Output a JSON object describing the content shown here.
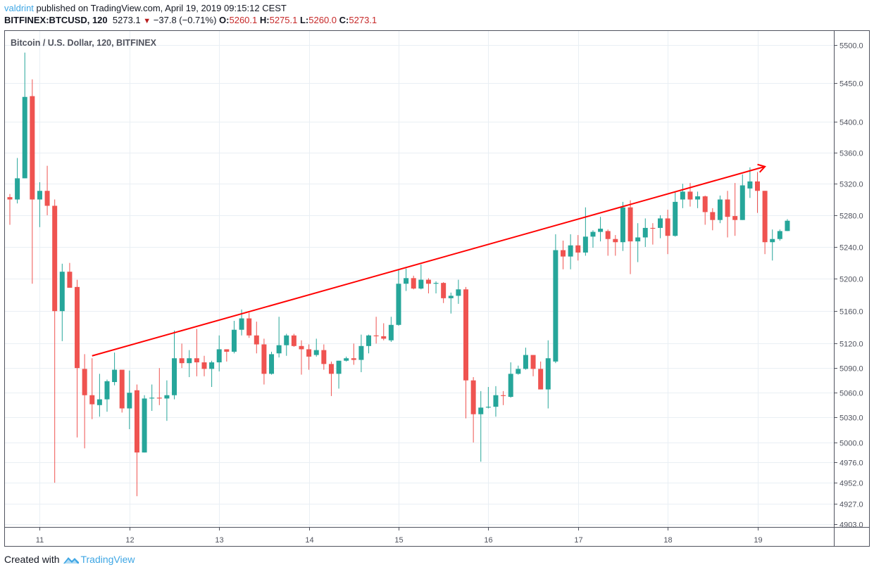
{
  "header": {
    "username": "valdrint",
    "published_text": "published on TradingView.com, April 19, 2019 09:15:12 CEST",
    "symbol_label": "BITFINEX:BTCUSD, 120",
    "last_price": "5273.1",
    "change_text": "−37.8 (−0.71%)",
    "change_direction_icon": "triangle-down-icon",
    "ohlc": [
      {
        "label": "O:",
        "value": "5260.1"
      },
      {
        "label": "H:",
        "value": "5275.1"
      },
      {
        "label": "L:",
        "value": "5260.0"
      },
      {
        "label": "C:",
        "value": "5273.1"
      }
    ]
  },
  "footer": {
    "created_with": "Created with",
    "brand": "TradingView",
    "logo_icon": "tradingview-cloud-logo-icon"
  },
  "colors": {
    "up": "#26a69a",
    "down": "#ef5350",
    "trendline": "#ff0000",
    "grid": "#e9eff4",
    "brand": "#3ea6e4"
  },
  "chart_data": {
    "type": "candlestick",
    "title": "Bitcoin / U.S. Dollar, 120, BITFINEX",
    "y_scale": "log",
    "ylim": [
      4903,
      5510
    ],
    "y_ticks": [
      "5500.0",
      "5450.0",
      "5400.0",
      "5360.0",
      "5320.0",
      "5280.0",
      "5240.0",
      "5200.0",
      "5160.0",
      "5120.0",
      "5090.0",
      "5060.0",
      "5030.0",
      "5000.0",
      "4976.0",
      "4952.0",
      "4927.0",
      "4903.0"
    ],
    "x_ticks": [
      "11",
      "12",
      "13",
      "14",
      "15",
      "16",
      "17",
      "18",
      "19"
    ],
    "grid": true,
    "columns": [
      "time",
      "open",
      "high",
      "low",
      "close"
    ],
    "candles": [
      [
        "04-10 16:00",
        5303,
        5307,
        5268,
        5300
      ],
      [
        "04-10 18:00",
        5300,
        5353,
        5295,
        5327
      ],
      [
        "04-10 20:00",
        5327,
        5490,
        5327,
        5432
      ],
      [
        "04-10 22:00",
        5433,
        5455,
        5194,
        5300
      ],
      [
        "04-11 00:00",
        5300,
        5322,
        5265,
        5311
      ],
      [
        "04-11 02:00",
        5311,
        5343,
        5280,
        5292
      ],
      [
        "04-11 04:00",
        5292,
        5300,
        4952,
        5160
      ],
      [
        "04-11 06:00",
        5160,
        5219,
        5123,
        5209
      ],
      [
        "04-11 08:00",
        5209,
        5220,
        5189,
        5189
      ],
      [
        "04-11 10:00",
        5190,
        5199,
        5006,
        5090
      ],
      [
        "04-11 12:00",
        5089,
        5107,
        4993,
        5057
      ],
      [
        "04-11 14:00",
        5057,
        5102,
        5028,
        5046
      ],
      [
        "04-11 16:00",
        5045,
        5083,
        5031,
        5052
      ],
      [
        "04-11 18:00",
        5052,
        5076,
        5037,
        5074
      ],
      [
        "04-11 20:00",
        5073,
        5109,
        5069,
        5088
      ],
      [
        "04-11 22:00",
        5088,
        5088,
        5036,
        5041
      ],
      [
        "04-12 00:00",
        5041,
        5087,
        5016,
        5060
      ],
      [
        "04-12 02:00",
        5063,
        5070,
        4936,
        4988
      ],
      [
        "04-12 04:00",
        4988,
        5057,
        4988,
        5053
      ],
      [
        "04-12 06:00",
        5053,
        5070,
        5038,
        5054
      ],
      [
        "04-12 08:00",
        5054,
        5090,
        5045,
        5053
      ],
      [
        "04-12 10:00",
        5053,
        5075,
        5026,
        5057
      ],
      [
        "04-12 12:00",
        5057,
        5136,
        5052,
        5102
      ],
      [
        "04-12 14:00",
        5102,
        5120,
        5090,
        5096
      ],
      [
        "04-12 16:00",
        5096,
        5112,
        5079,
        5102
      ],
      [
        "04-12 18:00",
        5102,
        5138,
        5080,
        5097
      ],
      [
        "04-12 20:00",
        5097,
        5105,
        5080,
        5089
      ],
      [
        "04-12 22:00",
        5089,
        5099,
        5067,
        5097
      ],
      [
        "04-13 00:00",
        5097,
        5130,
        5086,
        5113
      ],
      [
        "04-13 02:00",
        5113,
        5113,
        5098,
        5110
      ],
      [
        "04-13 04:00",
        5110,
        5148,
        5108,
        5137
      ],
      [
        "04-13 06:00",
        5137,
        5162,
        5130,
        5151
      ],
      [
        "04-13 08:00",
        5151,
        5158,
        5127,
        5130
      ],
      [
        "04-13 10:00",
        5130,
        5147,
        5108,
        5119
      ],
      [
        "04-13 12:00",
        5119,
        5126,
        5070,
        5083
      ],
      [
        "04-13 14:00",
        5083,
        5110,
        5082,
        5107
      ],
      [
        "04-13 16:00",
        5108,
        5153,
        5103,
        5118
      ],
      [
        "04-13 18:00",
        5118,
        5132,
        5105,
        5130
      ],
      [
        "04-13 20:00",
        5130,
        5132,
        5116,
        5117
      ],
      [
        "04-13 22:00",
        5117,
        5124,
        5082,
        5113
      ],
      [
        "04-14 00:00",
        5113,
        5119,
        5088,
        5104
      ],
      [
        "04-14 02:00",
        5106,
        5126,
        5104,
        5112
      ],
      [
        "04-14 04:00",
        5112,
        5119,
        5088,
        5095
      ],
      [
        "04-14 06:00",
        5095,
        5098,
        5056,
        5083
      ],
      [
        "04-14 08:00",
        5083,
        5099,
        5065,
        5099
      ],
      [
        "04-14 10:00",
        5099,
        5104,
        5098,
        5102
      ],
      [
        "04-14 12:00",
        5102,
        5120,
        5094,
        5100
      ],
      [
        "04-14 14:00",
        5100,
        5131,
        5085,
        5117
      ],
      [
        "04-14 16:00",
        5117,
        5131,
        5108,
        5130
      ],
      [
        "04-14 18:00",
        5130,
        5153,
        5120,
        5129
      ],
      [
        "04-14 20:00",
        5129,
        5145,
        5124,
        5126
      ],
      [
        "04-14 22:00",
        5124,
        5153,
        5122,
        5143
      ],
      [
        "04-15 00:00",
        5143,
        5212,
        5142,
        5194
      ],
      [
        "04-15 02:00",
        5194,
        5213,
        5185,
        5201
      ],
      [
        "04-15 04:00",
        5201,
        5204,
        5187,
        5188
      ],
      [
        "04-15 06:00",
        5188,
        5218,
        5187,
        5199
      ],
      [
        "04-15 08:00",
        5199,
        5201,
        5182,
        5194
      ],
      [
        "04-15 10:00",
        5194,
        5197,
        5182,
        5195
      ],
      [
        "04-15 12:00",
        5195,
        5196,
        5170,
        5176
      ],
      [
        "04-15 14:00",
        5176,
        5183,
        5157,
        5179
      ],
      [
        "04-15 16:00",
        5179,
        5199,
        5169,
        5187
      ],
      [
        "04-15 18:00",
        5187,
        5190,
        5029,
        5075
      ],
      [
        "04-15 20:00",
        5075,
        5079,
        5000,
        5034
      ],
      [
        "04-15 22:00",
        5034,
        5062,
        4977,
        5042
      ],
      [
        "04-16 00:00",
        5042,
        5067,
        5041,
        5043
      ],
      [
        "04-16 02:00",
        5043,
        5068,
        5031,
        5057
      ],
      [
        "04-16 04:00",
        5057,
        5062,
        5045,
        5056
      ],
      [
        "04-16 06:00",
        5055,
        5097,
        5054,
        5083
      ],
      [
        "04-16 08:00",
        5083,
        5093,
        5082,
        5089
      ],
      [
        "04-16 10:00",
        5089,
        5115,
        5088,
        5106
      ],
      [
        "04-16 12:00",
        5106,
        5106,
        5080,
        5089
      ],
      [
        "04-16 14:00",
        5089,
        5098,
        5064,
        5064
      ],
      [
        "04-16 16:00",
        5064,
        5124,
        5041,
        5102
      ],
      [
        "04-16 18:00",
        5098,
        5256,
        5096,
        5236
      ],
      [
        "04-16 20:00",
        5236,
        5248,
        5212,
        5228
      ],
      [
        "04-16 22:00",
        5228,
        5256,
        5212,
        5242
      ],
      [
        "04-17 00:00",
        5242,
        5255,
        5223,
        5233
      ],
      [
        "04-17 02:00",
        5233,
        5290,
        5229,
        5253
      ],
      [
        "04-17 04:00",
        5253,
        5261,
        5239,
        5259
      ],
      [
        "04-17 06:00",
        5259,
        5278,
        5247,
        5263
      ],
      [
        "04-17 08:00",
        5260,
        5262,
        5229,
        5250
      ],
      [
        "04-17 10:00",
        5250,
        5255,
        5229,
        5246
      ],
      [
        "04-17 12:00",
        5246,
        5297,
        5235,
        5290
      ],
      [
        "04-17 14:00",
        5290,
        5299,
        5206,
        5247
      ],
      [
        "04-17 16:00",
        5247,
        5270,
        5221,
        5252
      ],
      [
        "04-17 18:00",
        5252,
        5276,
        5240,
        5264
      ],
      [
        "04-17 20:00",
        5264,
        5270,
        5243,
        5263
      ],
      [
        "04-17 22:00",
        5264,
        5280,
        5251,
        5276
      ],
      [
        "04-18 00:00",
        5276,
        5287,
        5231,
        5254
      ],
      [
        "04-18 02:00",
        5254,
        5309,
        5253,
        5297
      ],
      [
        "04-18 04:00",
        5300,
        5320,
        5289,
        5310
      ],
      [
        "04-18 06:00",
        5310,
        5321,
        5291,
        5300
      ],
      [
        "04-18 08:00",
        5300,
        5310,
        5289,
        5304
      ],
      [
        "04-18 10:00",
        5304,
        5305,
        5268,
        5284
      ],
      [
        "04-18 12:00",
        5284,
        5289,
        5261,
        5274
      ],
      [
        "04-18 14:00",
        5274,
        5305,
        5270,
        5300
      ],
      [
        "04-18 16:00",
        5300,
        5311,
        5252,
        5278
      ],
      [
        "04-18 18:00",
        5279,
        5321,
        5254,
        5274
      ],
      [
        "04-18 20:00",
        5274,
        5332,
        5274,
        5318
      ],
      [
        "04-18 22:00",
        5314,
        5341,
        5302,
        5323
      ],
      [
        "04-19 00:00",
        5323,
        5335,
        5283,
        5311
      ],
      [
        "04-19 02:00",
        5311,
        5311,
        5231,
        5246
      ],
      [
        "04-19 04:00",
        5246,
        5262,
        5223,
        5250
      ],
      [
        "04-19 06:00",
        5250,
        5262,
        5248,
        5260
      ],
      [
        "04-19 08:00",
        5260.1,
        5275.1,
        5260.0,
        5273.1
      ]
    ],
    "annotations": [
      {
        "type": "trendline-arrow",
        "from": {
          "time": "04-11 14:00",
          "price": 5105
        },
        "to": {
          "time": "04-19 02:00",
          "price": 5342
        }
      }
    ]
  }
}
